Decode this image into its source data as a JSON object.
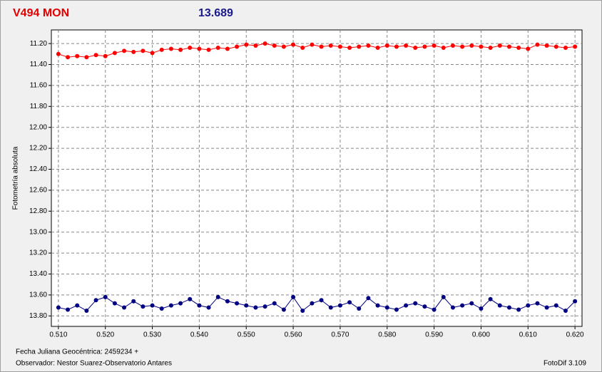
{
  "chart_data": {
    "type": "line",
    "title": "V494 MON",
    "subtitle": "13.689",
    "y_label": "Fotometría absoluta",
    "x_label": "Fecha Juliana Geocéntrica: 2459234 +",
    "annotations": [
      "Observador: Nestor Suarez-Observatorio Antares",
      "FotoDif 3.109"
    ],
    "x": [
      0.51,
      0.512,
      0.514,
      0.516,
      0.518,
      0.52,
      0.522,
      0.524,
      0.526,
      0.528,
      0.53,
      0.532,
      0.534,
      0.536,
      0.538,
      0.54,
      0.542,
      0.544,
      0.546,
      0.548,
      0.55,
      0.552,
      0.554,
      0.556,
      0.558,
      0.56,
      0.562,
      0.564,
      0.566,
      0.568,
      0.57,
      0.572,
      0.574,
      0.576,
      0.578,
      0.58,
      0.582,
      0.584,
      0.586,
      0.588,
      0.59,
      0.592,
      0.594,
      0.596,
      0.598,
      0.6,
      0.602,
      0.604,
      0.606,
      0.608,
      0.61,
      0.612,
      0.614,
      0.616,
      0.618,
      0.62
    ],
    "series": [
      {
        "color": "#ff0000",
        "values": [
          11.3,
          11.33,
          11.32,
          11.33,
          11.31,
          11.32,
          11.29,
          11.27,
          11.28,
          11.27,
          11.29,
          11.26,
          11.25,
          11.26,
          11.24,
          11.25,
          11.26,
          11.24,
          11.25,
          11.23,
          11.21,
          11.22,
          11.2,
          11.22,
          11.23,
          11.21,
          11.24,
          11.21,
          11.23,
          11.22,
          11.23,
          11.24,
          11.23,
          11.22,
          11.24,
          11.22,
          11.23,
          11.22,
          11.24,
          11.23,
          11.22,
          11.24,
          11.22,
          11.23,
          11.22,
          11.23,
          11.24,
          11.22,
          11.23,
          11.24,
          11.25,
          11.21,
          11.22,
          11.23,
          11.24,
          11.23
        ]
      },
      {
        "color": "#000080",
        "values": [
          13.72,
          13.74,
          13.7,
          13.75,
          13.65,
          13.62,
          13.68,
          13.72,
          13.66,
          13.71,
          13.7,
          13.73,
          13.7,
          13.68,
          13.64,
          13.7,
          13.72,
          13.62,
          13.66,
          13.68,
          13.7,
          13.72,
          13.71,
          13.68,
          13.74,
          13.62,
          13.75,
          13.68,
          13.65,
          13.72,
          13.7,
          13.67,
          13.73,
          13.63,
          13.7,
          13.72,
          13.74,
          13.7,
          13.68,
          13.71,
          13.74,
          13.62,
          13.72,
          13.7,
          13.68,
          13.73,
          13.64,
          13.7,
          13.72,
          13.74,
          13.7,
          13.68,
          13.72,
          13.7,
          13.75,
          13.66
        ]
      }
    ],
    "xlim": [
      0.5085,
      0.6215
    ],
    "xticks": [
      {
        "value": 0.51,
        "label": "0.510"
      },
      {
        "value": 0.52,
        "label": "0.520"
      },
      {
        "value": 0.53,
        "label": "0.530"
      },
      {
        "value": 0.54,
        "label": "0.540"
      },
      {
        "value": 0.55,
        "label": "0.550"
      },
      {
        "value": 0.56,
        "label": "0.560"
      },
      {
        "value": 0.57,
        "label": "0.570"
      },
      {
        "value": 0.58,
        "label": "0.580"
      },
      {
        "value": 0.59,
        "label": "0.590"
      },
      {
        "value": 0.6,
        "label": "0.600"
      },
      {
        "value": 0.61,
        "label": "0.610"
      },
      {
        "value": 0.62,
        "label": "0.620"
      }
    ],
    "ylim": [
      11.07,
      13.9
    ],
    "y_inverted": true,
    "yticks": [
      {
        "value": 11.2,
        "label": "11.20"
      },
      {
        "value": 11.4,
        "label": "11.40"
      },
      {
        "value": 11.6,
        "label": "11.60"
      },
      {
        "value": 11.8,
        "label": "11.80"
      },
      {
        "value": 12,
        "label": "12.00"
      },
      {
        "value": 12.2,
        "label": "12.20"
      },
      {
        "value": 12.4,
        "label": "12.40"
      },
      {
        "value": 12.6,
        "label": "12.60"
      },
      {
        "value": 12.8,
        "label": "12.80"
      },
      {
        "value": 13,
        "label": "13.00"
      },
      {
        "value": 13.2,
        "label": "13.20"
      },
      {
        "value": 13.4,
        "label": "13.40"
      },
      {
        "value": 13.6,
        "label": "13.60"
      },
      {
        "value": 13.8,
        "label": "13.80"
      }
    ],
    "grid": true
  }
}
